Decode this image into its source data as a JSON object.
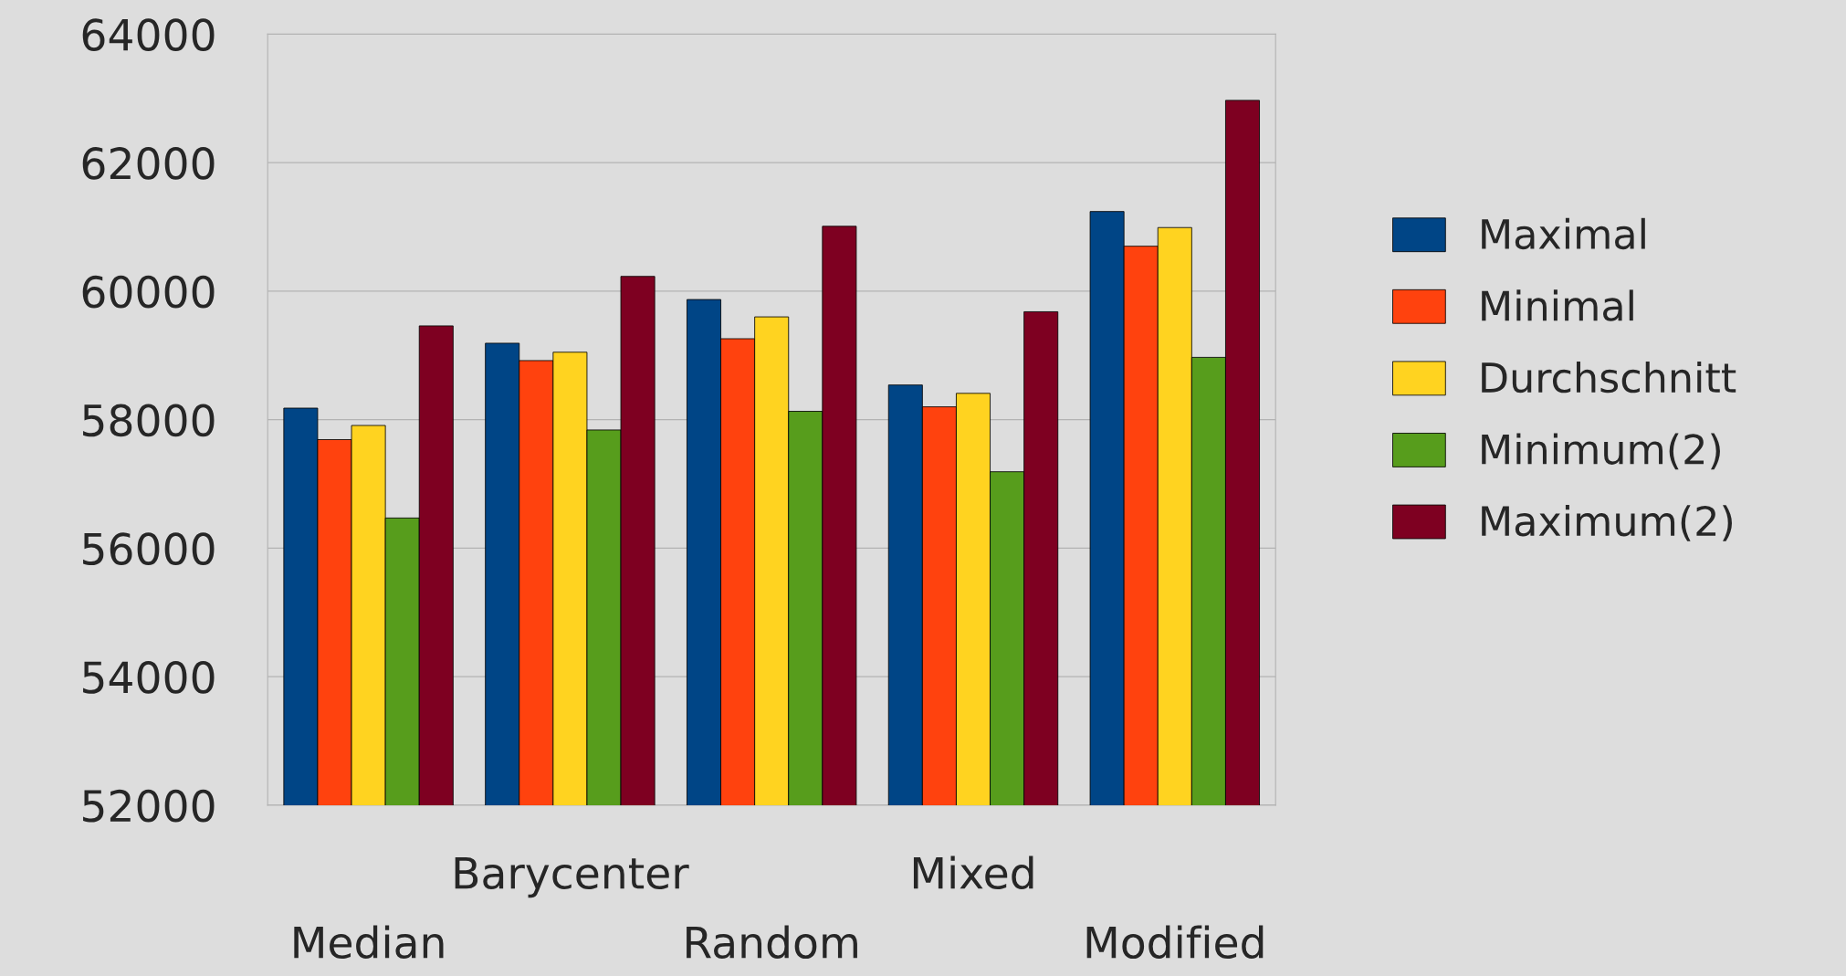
{
  "chart_data": {
    "type": "bar",
    "categories": [
      "Median",
      "Barycenter",
      "Random",
      "Mixed",
      "Modified"
    ],
    "series": [
      {
        "name": "Maximal",
        "color": "#004586",
        "values": [
          58180,
          59190,
          59870,
          58540,
          61240
        ]
      },
      {
        "name": "Minimal",
        "color": "#ff420e",
        "values": [
          57690,
          58920,
          59260,
          58200,
          60700
        ]
      },
      {
        "name": "Durchschnitt",
        "color": "#ffd320",
        "values": [
          57910,
          59050,
          59600,
          58410,
          60990
        ]
      },
      {
        "name": "Minimum(2)",
        "color": "#579d1c",
        "values": [
          56470,
          57840,
          58130,
          57190,
          58970
        ]
      },
      {
        "name": "Maximum(2)",
        "color": "#7e0021",
        "values": [
          59460,
          60230,
          61010,
          59680,
          62970
        ]
      }
    ],
    "ylim": [
      52000,
      64000
    ],
    "yticks": [
      52000,
      54000,
      56000,
      58000,
      60000,
      62000,
      64000
    ],
    "grid": "y",
    "legend": "right"
  }
}
